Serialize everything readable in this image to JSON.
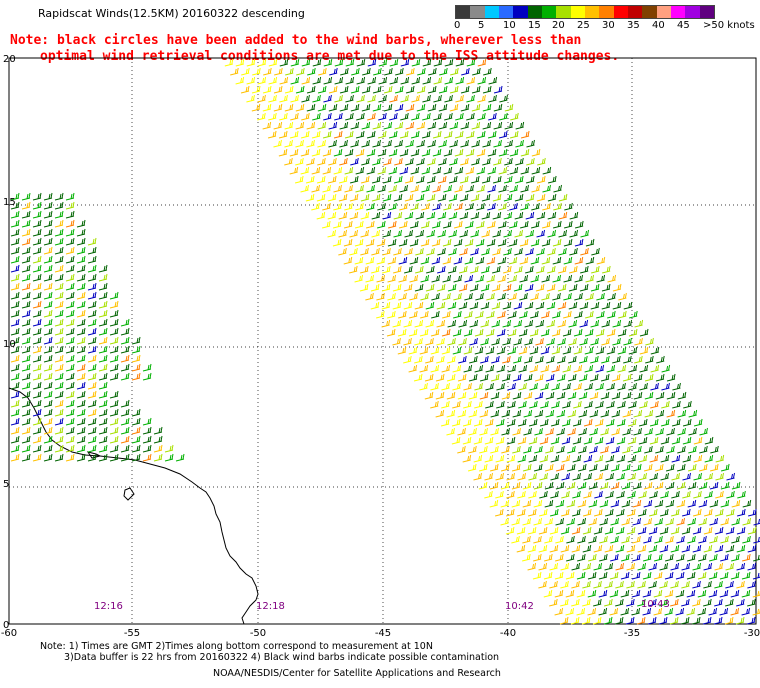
{
  "title": "Rapidscat Winds(12.5KM) 20160322 descending",
  "note": {
    "line1": "Note: black circles have been added to the wind barbs, wherever less than",
    "line2": "optimal wind retrieval conditions are met due to the ISS attitude changes."
  },
  "colorbar": {
    "colors": [
      "#3a3a3a",
      "#8a8a8a",
      "#00c8ff",
      "#2a6aff",
      "#0000c0",
      "#006400",
      "#00b000",
      "#a8e000",
      "#ffff00",
      "#ffc000",
      "#ff8000",
      "#ff0000",
      "#c00000",
      "#804000",
      "#ffa080",
      "#ff00ff",
      "#a000e0",
      "#600080"
    ],
    "ticks": [
      "0",
      "5",
      "10",
      "15",
      "20",
      "25",
      "30",
      "35",
      "40",
      "45",
      ">50 knots"
    ]
  },
  "axes": {
    "x_labels": [
      "-60",
      "-55",
      "-50",
      "-45",
      "-40",
      "-35",
      "-30"
    ],
    "y_labels": [
      "0",
      "5",
      "10",
      "15",
      "20"
    ]
  },
  "pass_times": [
    "12:16",
    "12:18",
    "10:42",
    "10:43"
  ],
  "footnote": {
    "line1": "Note: 1) Times are GMT 2)Times along bottom correspond to measurement at 10N",
    "line2": "3)Data buffer is 22 hrs from 20160322 4) Black wind barbs indicate possible contamination"
  },
  "credit": "NOAA/NESDIS/Center for Satellite Applications and Research"
}
